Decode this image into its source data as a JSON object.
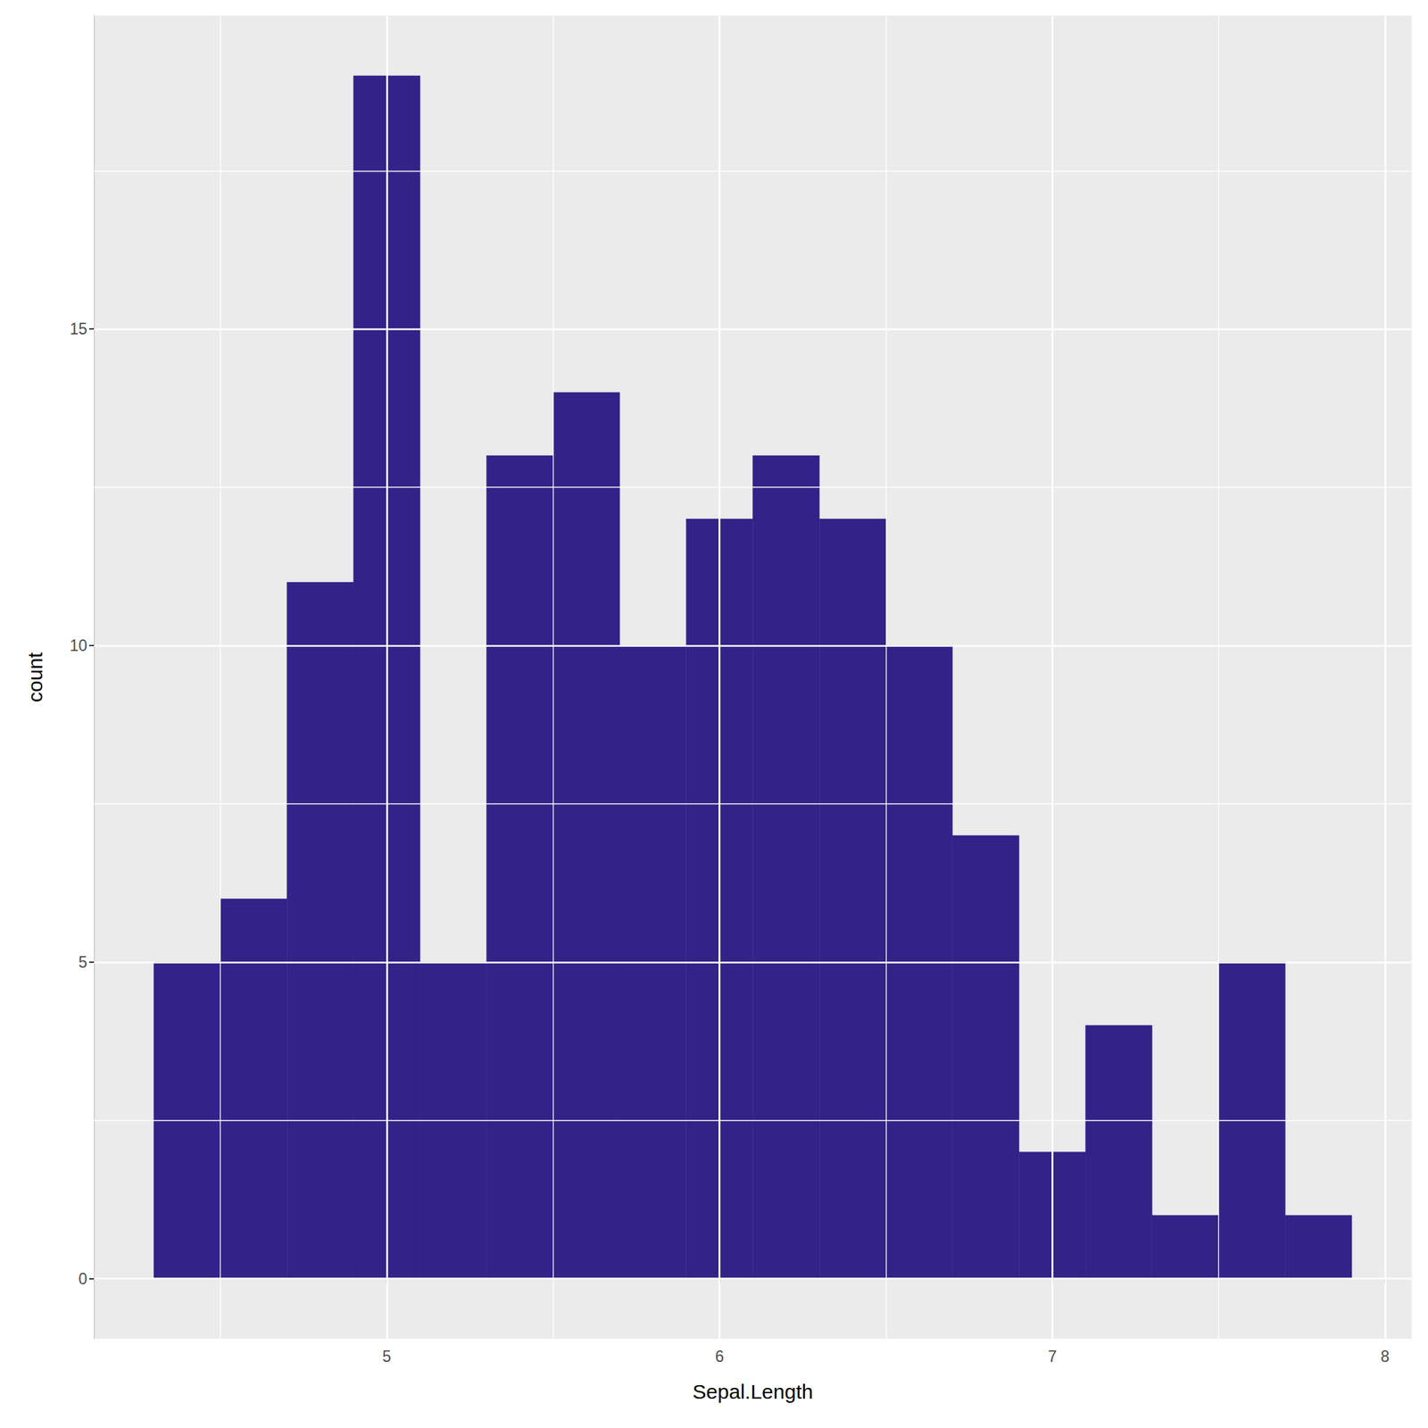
{
  "chart_data": {
    "type": "histogram",
    "x_label": "Sepal.Length",
    "y_label": "count",
    "bins": [
      4.3,
      4.5,
      4.7,
      4.9,
      5.1,
      5.3,
      5.5,
      5.7,
      5.9,
      6.1,
      6.3,
      6.5,
      6.7,
      6.9,
      7.1,
      7.3,
      7.5,
      7.7,
      7.9
    ],
    "values": [
      5,
      6,
      11,
      19,
      5,
      13,
      14,
      10,
      12,
      13,
      12,
      10,
      7,
      2,
      4,
      1,
      5,
      1
    ],
    "color": "#332288",
    "xlim": [
      4.12,
      8.08
    ],
    "xticks": [
      5,
      6,
      7,
      8
    ],
    "ylim": [
      -0.95,
      19.95
    ],
    "yticks": [
      0,
      5,
      10,
      15
    ],
    "grid": true
  }
}
